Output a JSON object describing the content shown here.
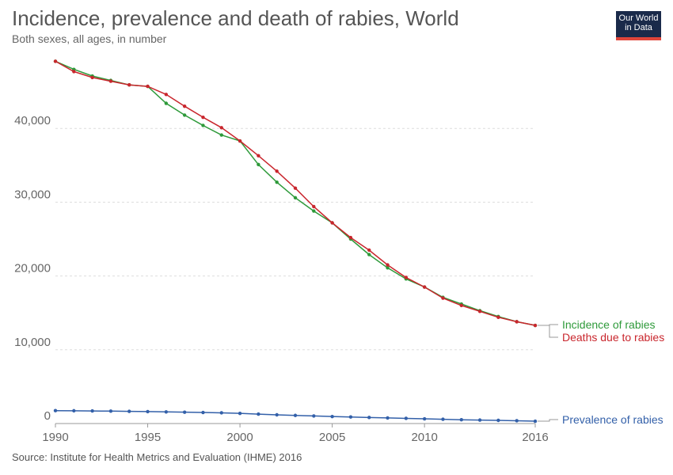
{
  "header": {
    "title": "Incidence, prevalence and death of rabies, World",
    "subtitle": "Both sexes, all ages, in number"
  },
  "logo": {
    "line1": "Our World",
    "line2": "in Data"
  },
  "footer": {
    "source": "Source: Institute for Health Metrics and Evaluation (IHME) 2016"
  },
  "chart_data": {
    "type": "line",
    "title": "Incidence, prevalence and death of rabies, World",
    "subtitle": "Both sexes, all ages, in number",
    "xlabel": "",
    "ylabel": "",
    "x": [
      1990,
      1991,
      1992,
      1993,
      1994,
      1995,
      1996,
      1997,
      1998,
      1999,
      2000,
      2001,
      2002,
      2003,
      2004,
      2005,
      2006,
      2007,
      2008,
      2009,
      2010,
      2011,
      2012,
      2013,
      2014,
      2015,
      2016
    ],
    "xticks": [
      1990,
      1995,
      2000,
      2005,
      2010,
      2016
    ],
    "xtick_labels": [
      "1990",
      "1995",
      "2000",
      "2005",
      "2010",
      "2016"
    ],
    "xlim": [
      1990,
      2016
    ],
    "ylim": [
      0,
      50000
    ],
    "yticks": [
      0,
      10000,
      20000,
      30000,
      40000
    ],
    "ytick_labels": [
      "0",
      "10,000",
      "20,000",
      "30,000",
      "40,000"
    ],
    "grid": true,
    "series": [
      {
        "name": "Incidence of rabies",
        "color": "#2e9a3a",
        "values": [
          49100,
          48000,
          47100,
          46500,
          45900,
          45700,
          43400,
          41800,
          40400,
          39100,
          38300,
          35100,
          32700,
          30600,
          28800,
          27200,
          25000,
          22900,
          21100,
          19600,
          18500,
          17100,
          16200,
          15300,
          14500,
          13800,
          13300
        ]
      },
      {
        "name": "Deaths due to rabies",
        "color": "#c9262d",
        "values": [
          49100,
          47700,
          46900,
          46400,
          45900,
          45700,
          44600,
          43000,
          41500,
          40100,
          38300,
          36300,
          34200,
          31900,
          29400,
          27200,
          25200,
          23500,
          21500,
          19800,
          18500,
          17000,
          16000,
          15200,
          14400,
          13800,
          13300
        ]
      },
      {
        "name": "Prevalence of rabies",
        "color": "#3360a9",
        "values": [
          1750,
          1730,
          1710,
          1680,
          1650,
          1620,
          1580,
          1540,
          1500,
          1450,
          1380,
          1280,
          1180,
          1100,
          1030,
          950,
          890,
          820,
          760,
          700,
          640,
          580,
          520,
          470,
          430,
          380,
          320
        ]
      }
    ]
  }
}
